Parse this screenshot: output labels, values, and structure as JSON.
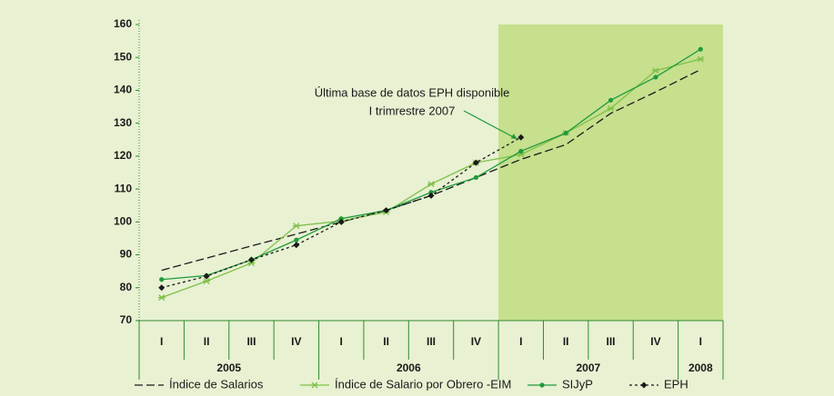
{
  "chart_data": {
    "type": "line",
    "categories": [
      "I",
      "II",
      "III",
      "IV",
      "I",
      "II",
      "III",
      "IV",
      "I",
      "II",
      "III",
      "IV",
      "I"
    ],
    "years": [
      "2005",
      "2006",
      "2007",
      "2008"
    ],
    "series": [
      {
        "name": "Índice de Salarios",
        "color": "#1a1a1a",
        "dash": "9,4",
        "marker": "none",
        "values": [
          85.3,
          89,
          92.7,
          96.3,
          100,
          103.5,
          108,
          113.5,
          119,
          123.5,
          133,
          139.5,
          146.3
        ]
      },
      {
        "name": "Índice de Salario por Obrero -EIM",
        "color": "#7fc04a",
        "dash": "none",
        "marker": "star",
        "values": [
          77,
          82,
          87.5,
          98.8,
          100.3,
          103,
          111.5,
          118,
          120.5,
          127,
          134.5,
          146,
          149.5
        ]
      },
      {
        "name": "SIJyP",
        "color": "#1f9a3c",
        "dash": "none",
        "marker": "dot",
        "values": [
          82.5,
          83.7,
          88.5,
          94.5,
          101,
          103.5,
          109,
          113.5,
          121.5,
          127,
          137,
          144,
          152.5
        ]
      },
      {
        "name": "EPH",
        "color": "#1a1a1a",
        "dash": "3,3",
        "marker": "diamond",
        "values": [
          80,
          83.5,
          88.5,
          93,
          100,
          103.5,
          108,
          118,
          125.7,
          null,
          null,
          null,
          null
        ]
      }
    ],
    "ylim": [
      70,
      160
    ],
    "yticks": [
      70,
      80,
      90,
      100,
      110,
      120,
      130,
      140,
      150,
      160
    ],
    "highlight": {
      "from_index": 8,
      "color": "#c6e08e"
    },
    "annotation": [
      "Última base de datos EPH disponible",
      "I trimrestre 2007"
    ]
  }
}
